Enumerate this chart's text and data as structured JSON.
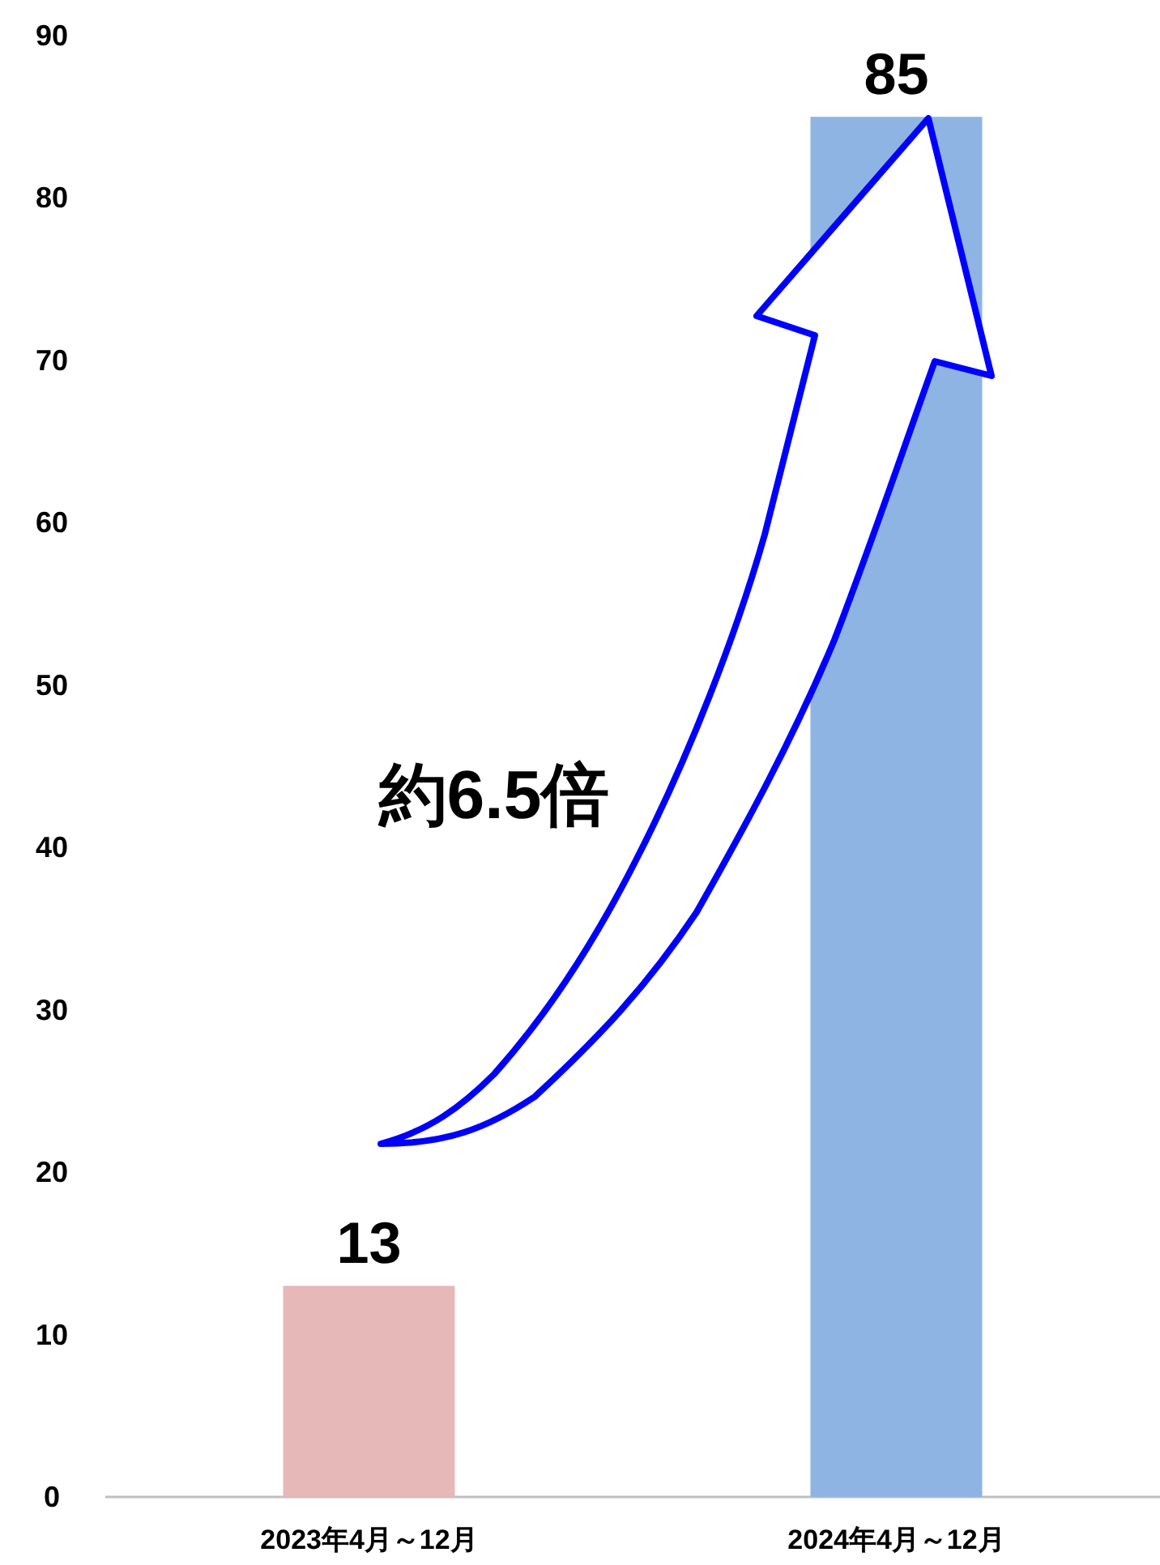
{
  "chart_data": {
    "type": "bar",
    "categories": [
      "2023年4月～12月",
      "2024年4月～12月"
    ],
    "values": [
      13,
      85
    ],
    "colors": [
      "#e6b8b7",
      "#8eb4e3"
    ],
    "ylim": [
      0,
      90
    ],
    "yticks": [
      0,
      10,
      20,
      30,
      40,
      50,
      60,
      70,
      80,
      90
    ],
    "data_labels": true,
    "annotations": [
      "約6.5倍"
    ]
  }
}
